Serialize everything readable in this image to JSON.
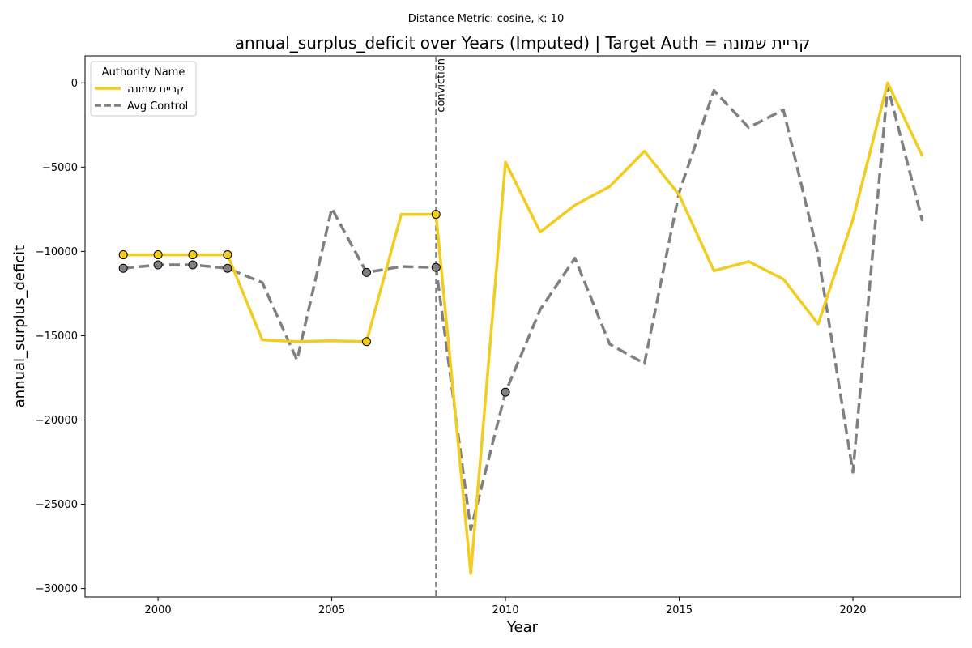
{
  "chart_data": {
    "type": "line",
    "suptitle": "Distance Metric: cosine, k: 10",
    "title": "annual_surplus_deficit over Years (Imputed) | Target Auth = קריית שמונה",
    "xlabel": "Year",
    "ylabel": "annual_surplus_deficit",
    "xlim": [
      1997.9,
      2023.1
    ],
    "ylim": [
      -30500,
      1600
    ],
    "xticks": [
      2000,
      2005,
      2010,
      2015,
      2020
    ],
    "yticks": [
      0,
      -5000,
      -10000,
      -15000,
      -20000,
      -25000,
      -30000
    ],
    "xtick_labels": [
      "2000",
      "2005",
      "2010",
      "2015",
      "2020"
    ],
    "ytick_labels": [
      "0",
      "−5000",
      "−10000",
      "−15000",
      "−20000",
      "−25000",
      "−30000"
    ],
    "legend": {
      "title": "Authority Name",
      "placement": "top-left"
    },
    "vline": {
      "x": 2008,
      "label": "conviction",
      "color": "#808080"
    },
    "grid": false,
    "series": [
      {
        "name": "קריית שמונה",
        "color": "#F2CC1F",
        "style": "solid",
        "x": [
          1999,
          2000,
          2001,
          2002,
          2003,
          2004,
          2005,
          2006,
          2007,
          2008,
          2009,
          2010,
          2011,
          2012,
          2013,
          2014,
          2015,
          2016,
          2017,
          2018,
          2019,
          2020,
          2021,
          2022
        ],
        "y": [
          -10200,
          -10200,
          -10200,
          -10200,
          -15250,
          -15350,
          -15300,
          -15350,
          -7800,
          -7800,
          -29100,
          -4700,
          -8850,
          -7250,
          -6150,
          -4050,
          -6650,
          -11150,
          -10600,
          -11650,
          -14300,
          -8100,
          0,
          -4350
        ],
        "imputed": [
          1999,
          2000,
          2001,
          2002,
          2006,
          2008
        ]
      },
      {
        "name": "Avg Control",
        "color": "#808080",
        "style": "dashed",
        "x": [
          1999,
          2000,
          2001,
          2002,
          2003,
          2004,
          2005,
          2006,
          2007,
          2008,
          2009,
          2010,
          2011,
          2012,
          2013,
          2014,
          2015,
          2016,
          2017,
          2018,
          2019,
          2020,
          2021,
          2022
        ],
        "y": [
          -11000,
          -10800,
          -10800,
          -11000,
          -11850,
          -16450,
          -7450,
          -11250,
          -10900,
          -10950,
          -26500,
          -18350,
          -13450,
          -10400,
          -15500,
          -16650,
          -6500,
          -450,
          -2650,
          -1600,
          -10200,
          -23100,
          -200,
          -8200
        ],
        "imputed": [
          1999,
          2000,
          2001,
          2002,
          2006,
          2008,
          2010
        ]
      }
    ]
  }
}
